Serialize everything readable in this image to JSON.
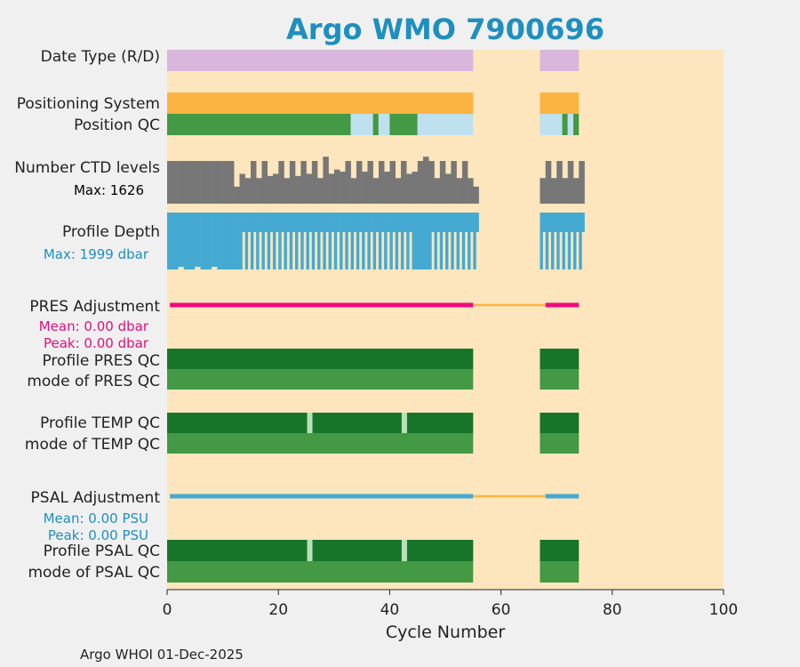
{
  "chart_data": {
    "type": "timeline",
    "title": "Argo WMO 7900696",
    "xlabel": "Cycle Number",
    "xlim": [
      0,
      100
    ],
    "xticks": [
      "0",
      "20",
      "40",
      "60",
      "80",
      "100"
    ],
    "footer": "Argo WHOI 01-Dec-2025",
    "colors": {
      "background": "#fde6bd",
      "lilac": "#d9b6db",
      "orange": "#fbb441",
      "green": "#449944",
      "darkgreen": "#17752a",
      "lightblue": "#bfe0ee",
      "gray": "#777777",
      "blue": "#44aad2",
      "magenta": "#ee0a7e",
      "statsPink": "#e0107a",
      "statsBlue": "#1f8fbf"
    },
    "rows": [
      {
        "name": "date-type",
        "label": "Date Type (R/D)"
      },
      {
        "name": "positioning-system",
        "label": "Positioning System"
      },
      {
        "name": "position-qc",
        "label": "Position QC"
      },
      {
        "name": "ctd-levels",
        "label": "Number CTD levels",
        "stat": "Max: 1626"
      },
      {
        "name": "profile-depth",
        "label": "Profile Depth",
        "stat": "Max: 1999 dbar"
      },
      {
        "name": "pres-adjustment",
        "label": "PRES Adjustment",
        "stats": [
          "Mean: 0.00 dbar",
          "Peak: 0.00 dbar"
        ]
      },
      {
        "name": "profile-pres-qc",
        "label": "Profile PRES QC"
      },
      {
        "name": "mode-pres-qc",
        "label": "mode of PRES QC"
      },
      {
        "name": "profile-temp-qc",
        "label": "Profile TEMP QC"
      },
      {
        "name": "mode-temp-qc",
        "label": "mode of TEMP QC"
      },
      {
        "name": "psal-adjustment",
        "label": "PSAL Adjustment",
        "stats": [
          "Mean: 0.00 PSU",
          "Peak: 0.00 PSU"
        ]
      },
      {
        "name": "profile-psal-qc",
        "label": "Profile PSAL QC"
      },
      {
        "name": "mode-psal-qc",
        "label": "mode of PSAL QC"
      }
    ],
    "data_ranges": [
      [
        0,
        55
      ],
      [
        67,
        74
      ]
    ],
    "position_qc_segments": [
      {
        "range": [
          0,
          33
        ],
        "state": "good"
      },
      {
        "range": [
          33,
          37
        ],
        "state": "missing"
      },
      {
        "range": [
          37,
          38
        ],
        "state": "good"
      },
      {
        "range": [
          38,
          40
        ],
        "state": "missing"
      },
      {
        "range": [
          40,
          45
        ],
        "state": "good"
      },
      {
        "range": [
          45,
          55
        ],
        "state": "missing"
      },
      {
        "range": [
          67,
          71
        ],
        "state": "missing"
      },
      {
        "range": [
          71,
          72
        ],
        "state": "good"
      },
      {
        "range": [
          72,
          73
        ],
        "state": "missing"
      },
      {
        "range": [
          73,
          74
        ],
        "state": "good"
      }
    ],
    "profile_qc_gaps": [
      25,
      42
    ],
    "ctd_levels_fraction": [
      1,
      1,
      1,
      1,
      1,
      1,
      1,
      1,
      1,
      1,
      1,
      1,
      0.4,
      0.7,
      0.6,
      1,
      0.6,
      1,
      0.65,
      0.7,
      1,
      0.6,
      1,
      0.65,
      1,
      0.7,
      1,
      0.6,
      1.1,
      0.7,
      0.8,
      0.75,
      1,
      0.6,
      1,
      0.75,
      1,
      0.6,
      1,
      0.75,
      1,
      0.6,
      1,
      0.7,
      0.75,
      1,
      1.1,
      1,
      0.6,
      1,
      0.7,
      1,
      0.6,
      1,
      0.6,
      0.4,
      0,
      0,
      0,
      0,
      0,
      0,
      0,
      0,
      0,
      0,
      0,
      0.6,
      1,
      0.6,
      1,
      0.6,
      1,
      0.6,
      1
    ],
    "profile_depth_fraction": [
      1,
      1,
      1,
      1,
      1,
      1,
      1,
      1,
      1,
      1,
      1,
      1,
      1,
      0.05,
      0.05,
      0.05,
      0.05,
      0.05,
      0.05,
      0.05,
      0.05,
      0.05,
      0.05,
      0.05,
      0.05,
      0.05,
      0.05,
      0.05,
      0.05,
      0.05,
      0.05,
      0.05,
      0.05,
      0.05,
      0.05,
      0.05,
      0.05,
      0.05,
      0.05,
      0.05,
      0.05,
      0.05,
      0.05,
      0.05,
      1,
      1,
      1,
      0.05,
      0.05,
      0.05,
      0.05,
      0.05,
      0.05,
      0.05,
      0.05,
      0.05,
      0,
      0,
      0,
      0,
      0,
      0,
      0,
      0,
      0,
      0,
      0,
      0.05,
      0.05,
      0.05,
      0.05,
      0.05,
      0.05,
      0.05,
      0.05
    ]
  }
}
